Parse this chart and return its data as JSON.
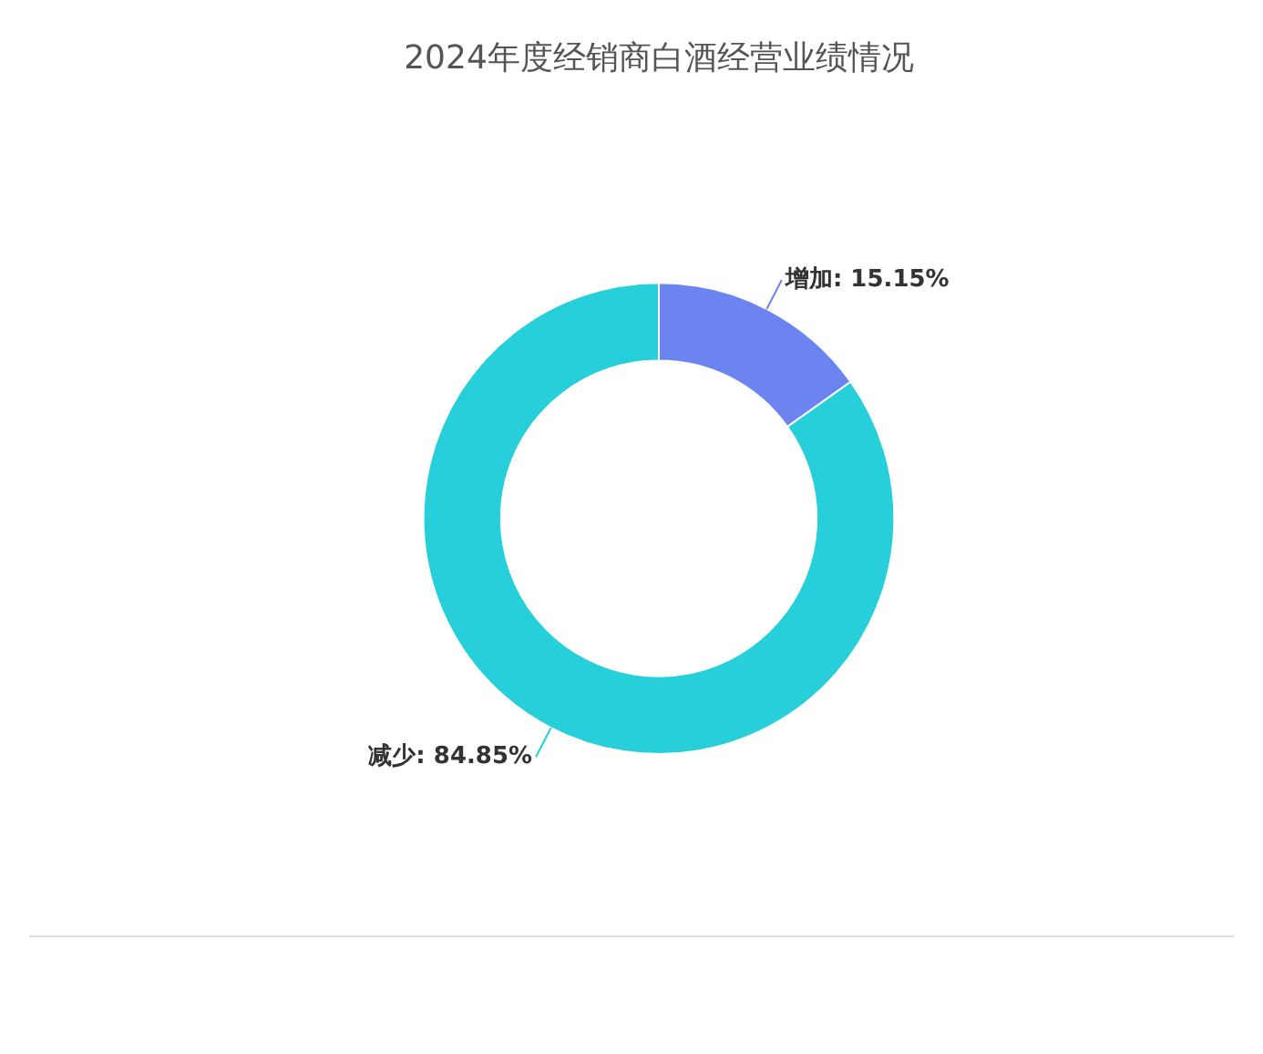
{
  "chart_data": {
    "type": "donut",
    "title": "2024年度经销商白酒经营业绩情况",
    "categories": [
      "增加",
      "减少"
    ],
    "values": [
      15.15,
      84.85
    ],
    "value_labels": [
      "15.15%",
      "84.85%"
    ],
    "colors": [
      "#6b84f0",
      "#26cfd9"
    ],
    "legend": false
  }
}
